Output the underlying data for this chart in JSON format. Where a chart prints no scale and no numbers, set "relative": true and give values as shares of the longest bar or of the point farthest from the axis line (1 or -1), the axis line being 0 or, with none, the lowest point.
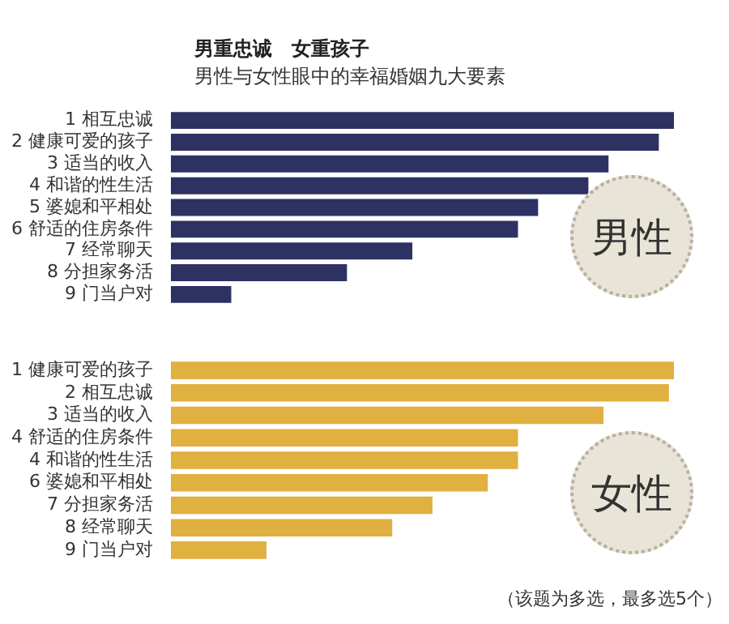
{
  "chart_data": [
    {
      "type": "bar",
      "orientation": "horizontal",
      "relative": true,
      "title": "男重忠诚　女重孩子",
      "subtitle": "男性与女性眼中的幸福婚姻九大要素",
      "categories": [
        "1 相互忠诚",
        "2 健康可爱的孩子",
        "3 适当的收入",
        "4 和谐的性生活",
        "5 婆媳和平相处",
        "6 舒适的住房条件",
        "7 经常聊天",
        "8 分担家务活",
        "9 门当户对"
      ],
      "series": [
        {
          "name": "男性",
          "color": "#2d3263",
          "values": [
            1,
            0.97,
            0.87,
            0.83,
            0.73,
            0.69,
            0.48,
            0.35,
            0.12
          ]
        }
      ]
    },
    {
      "type": "bar",
      "orientation": "horizontal",
      "relative": true,
      "categories": [
        "1 健康可爱的孩子",
        "2 相互忠诚",
        "3 适当的收入",
        "4 舒适的住房条件",
        "4 和谐的性生活",
        "6 婆媳和平相处",
        "7 分担家务活",
        "8 经常聊天",
        "9 门当户对"
      ],
      "series": [
        {
          "name": "女性",
          "color": "#e0b040",
          "values": [
            1,
            0.99,
            0.86,
            0.69,
            0.69,
            0.63,
            0.52,
            0.44,
            0.19
          ]
        }
      ],
      "annotations": [
        "（该题为多选，最多选5个）"
      ]
    }
  ]
}
